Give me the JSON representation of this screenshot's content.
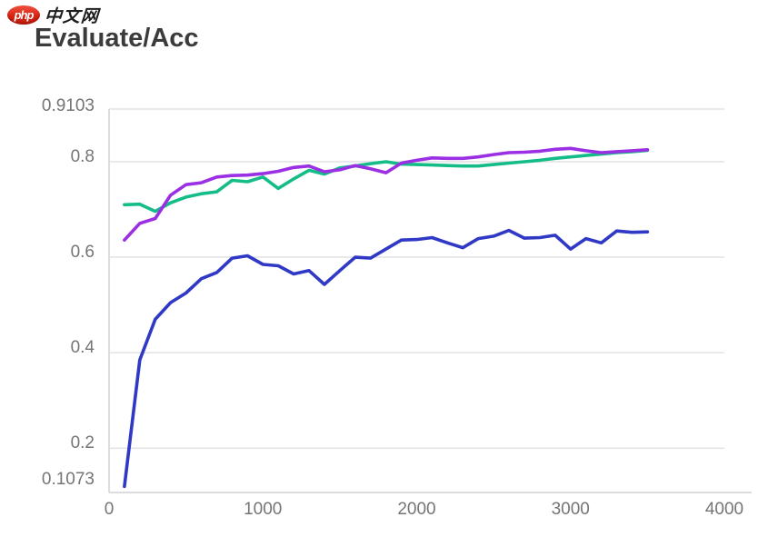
{
  "header": {
    "logo_badge": "php",
    "logo_text": "中文网",
    "title": "Evaluate/Acc"
  },
  "colors": {
    "title_text": "#3b3b3b",
    "logo_red": "#d92413",
    "axis_line": "#dcdcdc",
    "grid_line": "#e4e4e4",
    "tick_text": "#757575",
    "series_green": "#14bd88",
    "series_purple": "#9b2fe3",
    "series_blue": "#3039c6"
  },
  "chart_data": {
    "type": "line",
    "title": "Evaluate/Acc",
    "xlabel": "",
    "ylabel": "",
    "xlim": [
      0,
      4000
    ],
    "ylim": [
      0.1073,
      0.9103
    ],
    "grid": "horizontal",
    "legend": "none",
    "x_ticks": [
      {
        "label": "0",
        "value": 0
      },
      {
        "label": "1000",
        "value": 1000
      },
      {
        "label": "2000",
        "value": 2000
      },
      {
        "label": "3000",
        "value": 3000
      },
      {
        "label": "4000",
        "value": 4000
      }
    ],
    "y_ticks": [
      {
        "label": "0.9103",
        "value": 0.9103
      },
      {
        "label": "0.8",
        "value": 0.8
      },
      {
        "label": "0.6",
        "value": 0.6
      },
      {
        "label": "0.4",
        "value": 0.4
      },
      {
        "label": "0.2",
        "value": 0.2
      },
      {
        "label": "0.1073",
        "value": 0.1073
      }
    ],
    "x": [
      100,
      200,
      300,
      400,
      500,
      600,
      700,
      800,
      900,
      1000,
      1100,
      1200,
      1300,
      1400,
      1500,
      1600,
      1700,
      1800,
      1900,
      2000,
      2100,
      2200,
      2300,
      2400,
      2500,
      2600,
      2700,
      2800,
      2900,
      3000,
      3100,
      3200,
      3300,
      3400,
      3500
    ],
    "series": [
      {
        "name": "green-accuracy-curve",
        "color": "#14bd88",
        "values": [
          0.71,
          0.711,
          0.696,
          0.714,
          0.726,
          0.733,
          0.737,
          0.761,
          0.758,
          0.768,
          0.744,
          0.764,
          0.782,
          0.774,
          0.787,
          0.791,
          0.796,
          0.8,
          0.795,
          0.794,
          0.793,
          0.792,
          0.791,
          0.791,
          0.794,
          0.797,
          0.8,
          0.803,
          0.807,
          0.81,
          0.813,
          0.816,
          0.819,
          0.821,
          0.824
        ]
      },
      {
        "name": "purple-accuracy-curve",
        "color": "#9b2fe3",
        "values": [
          0.636,
          0.671,
          0.681,
          0.73,
          0.752,
          0.756,
          0.768,
          0.771,
          0.772,
          0.775,
          0.78,
          0.788,
          0.791,
          0.779,
          0.783,
          0.792,
          0.785,
          0.777,
          0.797,
          0.803,
          0.808,
          0.807,
          0.807,
          0.81,
          0.815,
          0.819,
          0.82,
          0.822,
          0.826,
          0.828,
          0.823,
          0.819,
          0.821,
          0.823,
          0.825
        ]
      },
      {
        "name": "blue-accuracy-curve",
        "color": "#3039c6",
        "values": [
          0.12,
          0.385,
          0.47,
          0.505,
          0.525,
          0.555,
          0.568,
          0.598,
          0.603,
          0.585,
          0.582,
          0.565,
          0.572,
          0.543,
          0.572,
          0.6,
          0.598,
          0.617,
          0.636,
          0.637,
          0.641,
          0.63,
          0.62,
          0.639,
          0.644,
          0.656,
          0.64,
          0.641,
          0.646,
          0.617,
          0.639,
          0.63,
          0.655,
          0.652,
          0.653
        ]
      }
    ]
  }
}
